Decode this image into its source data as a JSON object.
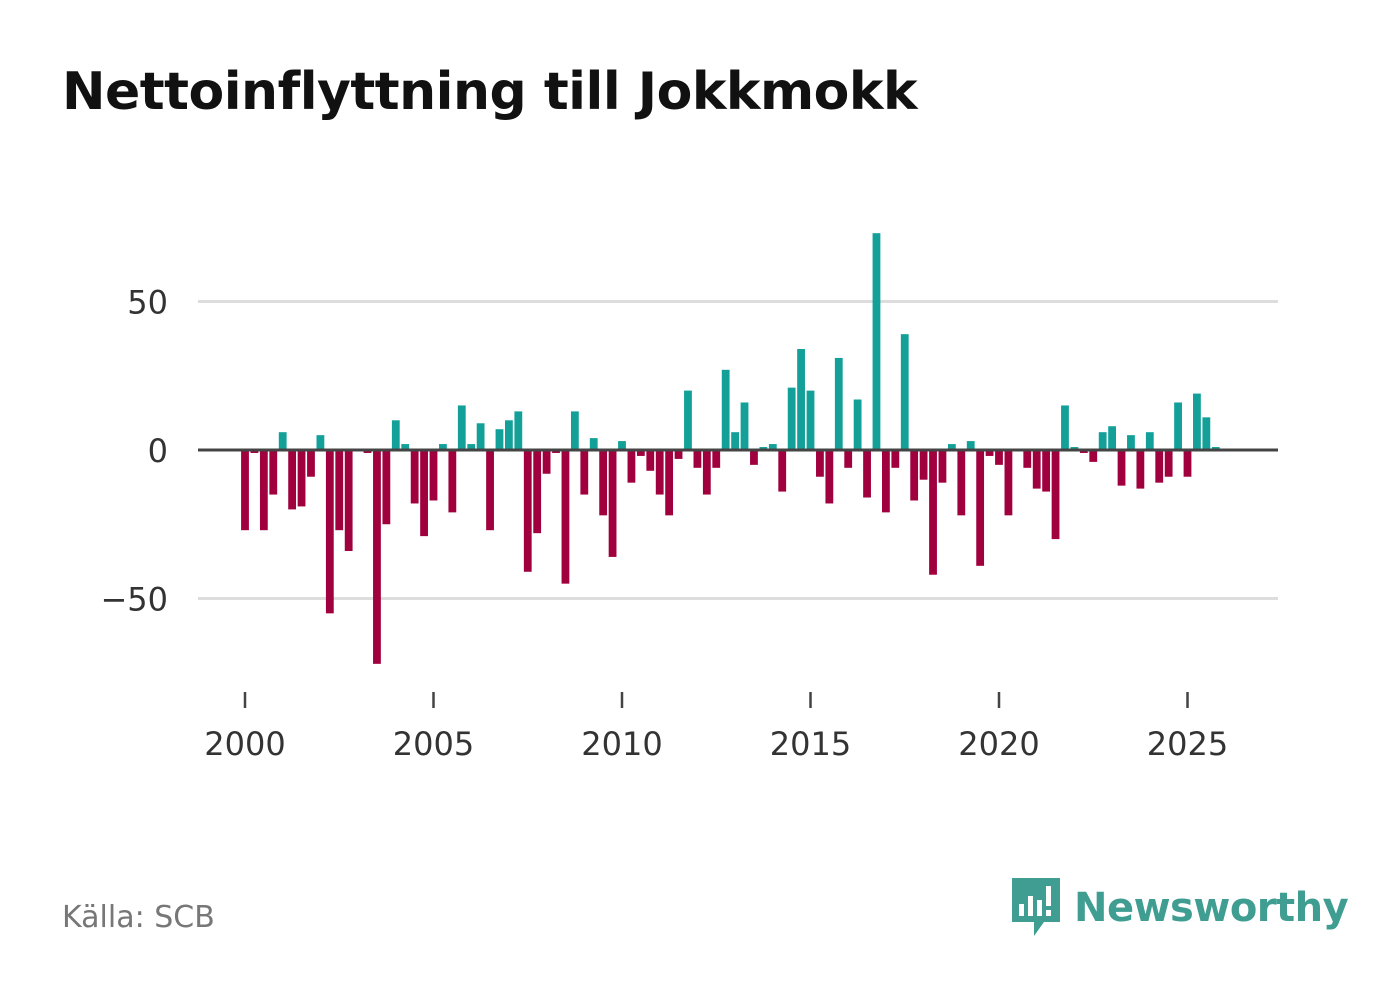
{
  "title": "Nettoinflyttning till Jokkmokk",
  "source": "Källa: SCB",
  "brand": "Newsworthy",
  "colors": {
    "positive": "#13a098",
    "negative": "#a0003e",
    "grid": "#dddddd",
    "zero": "#444444"
  },
  "chart_data": {
    "type": "bar",
    "title": "Nettoinflyttning till Jokkmokk",
    "xlabel": "",
    "ylabel": "",
    "x_ticks": [
      "2000",
      "2005",
      "2010",
      "2015",
      "2020",
      "2025"
    ],
    "y_ticks": [
      {
        "value": 50,
        "label": "50"
      },
      {
        "value": 0,
        "label": "0"
      },
      {
        "value": -50,
        "label": "−50"
      }
    ],
    "xlim": [
      1999.0,
      2027.5
    ],
    "ylim": [
      -77,
      80
    ],
    "grid": true,
    "series": [
      {
        "name": "Nettoinflyttning",
        "x": [
          2000.0,
          2000.25,
          2000.5,
          2000.75,
          2001.0,
          2001.25,
          2001.5,
          2001.75,
          2002.0,
          2002.25,
          2002.5,
          2002.75,
          2003.0,
          2003.25,
          2003.5,
          2003.75,
          2004.0,
          2004.25,
          2004.5,
          2004.75,
          2005.0,
          2005.25,
          2005.5,
          2005.75,
          2006.0,
          2006.25,
          2006.5,
          2006.75,
          2007.0,
          2007.25,
          2007.5,
          2007.75,
          2008.0,
          2008.25,
          2008.5,
          2008.75,
          2009.0,
          2009.25,
          2009.5,
          2009.75,
          2010.0,
          2010.25,
          2010.5,
          2010.75,
          2011.0,
          2011.25,
          2011.5,
          2011.75,
          2012.0,
          2012.25,
          2012.5,
          2012.75,
          2013.0,
          2013.25,
          2013.5,
          2013.75,
          2014.0,
          2014.25,
          2014.5,
          2014.75,
          2015.0,
          2015.25,
          2015.5,
          2015.75,
          2016.0,
          2016.25,
          2016.5,
          2016.75,
          2017.0,
          2017.25,
          2017.5,
          2017.75,
          2018.0,
          2018.25,
          2018.5,
          2018.75,
          2019.0,
          2019.25,
          2019.5,
          2019.75,
          2020.0,
          2020.25,
          2020.5,
          2020.75,
          2021.0,
          2021.25,
          2021.5,
          2021.75,
          2022.0,
          2022.25,
          2022.5,
          2022.75,
          2023.0,
          2023.25,
          2023.5,
          2023.75,
          2024.0,
          2024.25,
          2024.5,
          2024.75,
          2025.0,
          2025.25,
          2025.5,
          2025.75
        ],
        "values": [
          -27,
          -1,
          -27,
          -15,
          6,
          -20,
          -19,
          -9,
          5,
          -55,
          -27,
          -34,
          0,
          -1,
          -72,
          -25,
          10,
          2,
          -18,
          -29,
          -17,
          2,
          -21,
          15,
          2,
          9,
          -27,
          7,
          10,
          13,
          -41,
          -28,
          -8,
          -1,
          -45,
          13,
          -15,
          4,
          -22,
          -36,
          3,
          -11,
          -2,
          -7,
          -15,
          -22,
          -3,
          20,
          -6,
          -15,
          -6,
          27,
          6,
          16,
          -5,
          1,
          2,
          -14,
          21,
          34,
          20,
          -9,
          -18,
          31,
          -6,
          17,
          -16,
          73,
          -21,
          -6,
          39,
          -17,
          -10,
          -42,
          -11,
          2,
          -22,
          3,
          -39,
          -2,
          -5,
          -22,
          0,
          -6,
          -13,
          -14,
          -30,
          15,
          1,
          -1,
          -4,
          6,
          8,
          -12,
          5,
          -13,
          6,
          -11,
          -9,
          16,
          -9,
          19,
          11,
          1
        ]
      }
    ]
  }
}
